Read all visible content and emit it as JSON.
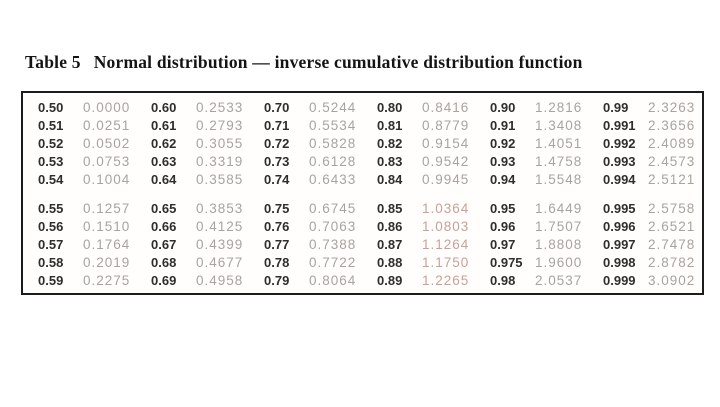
{
  "title": {
    "label": "Table 5",
    "text": "Normal distribution — inverse cumulative distribution function"
  },
  "colors": {
    "background": "#ffffff",
    "border": "#1c1c1c",
    "title": "#141414",
    "probability": "#2f2e2c",
    "value": "#a8a39e",
    "value_warm_tint": "#c7a198"
  },
  "chart_data": {
    "type": "table",
    "title": "Table 5  Normal distribution — inverse cumulative distribution function",
    "column_pattern": [
      "probability",
      "inverse_cdf_value"
    ],
    "groups": [
      {
        "rows": [
          [
            [
              "0.50",
              "0.0000"
            ],
            [
              "0.60",
              "0.2533"
            ],
            [
              "0.70",
              "0.5244"
            ],
            [
              "0.80",
              "0.8416"
            ],
            [
              "0.90",
              "1.2816"
            ],
            [
              "0.99",
              "2.3263"
            ]
          ],
          [
            [
              "0.51",
              "0.0251"
            ],
            [
              "0.61",
              "0.2793"
            ],
            [
              "0.71",
              "0.5534"
            ],
            [
              "0.81",
              "0.8779"
            ],
            [
              "0.91",
              "1.3408"
            ],
            [
              "0.991",
              "2.3656"
            ]
          ],
          [
            [
              "0.52",
              "0.0502"
            ],
            [
              "0.62",
              "0.3055"
            ],
            [
              "0.72",
              "0.5828"
            ],
            [
              "0.82",
              "0.9154"
            ],
            [
              "0.92",
              "1.4051"
            ],
            [
              "0.992",
              "2.4089"
            ]
          ],
          [
            [
              "0.53",
              "0.0753"
            ],
            [
              "0.63",
              "0.3319"
            ],
            [
              "0.73",
              "0.6128"
            ],
            [
              "0.83",
              "0.9542"
            ],
            [
              "0.93",
              "1.4758"
            ],
            [
              "0.993",
              "2.4573"
            ]
          ],
          [
            [
              "0.54",
              "0.1004"
            ],
            [
              "0.64",
              "0.3585"
            ],
            [
              "0.74",
              "0.6433"
            ],
            [
              "0.84",
              "0.9945"
            ],
            [
              "0.94",
              "1.5548"
            ],
            [
              "0.994",
              "2.5121"
            ]
          ]
        ]
      },
      {
        "rows": [
          [
            [
              "0.55",
              "0.1257"
            ],
            [
              "0.65",
              "0.3853"
            ],
            [
              "0.75",
              "0.6745"
            ],
            [
              "0.85",
              "1.0364"
            ],
            [
              "0.95",
              "1.6449"
            ],
            [
              "0.995",
              "2.5758"
            ]
          ],
          [
            [
              "0.56",
              "0.1510"
            ],
            [
              "0.66",
              "0.4125"
            ],
            [
              "0.76",
              "0.7063"
            ],
            [
              "0.86",
              "1.0803"
            ],
            [
              "0.96",
              "1.7507"
            ],
            [
              "0.996",
              "2.6521"
            ]
          ],
          [
            [
              "0.57",
              "0.1764"
            ],
            [
              "0.67",
              "0.4399"
            ],
            [
              "0.77",
              "0.7388"
            ],
            [
              "0.87",
              "1.1264"
            ],
            [
              "0.97",
              "1.8808"
            ],
            [
              "0.997",
              "2.7478"
            ]
          ],
          [
            [
              "0.58",
              "0.2019"
            ],
            [
              "0.68",
              "0.4677"
            ],
            [
              "0.78",
              "0.7722"
            ],
            [
              "0.88",
              "1.1750"
            ],
            [
              "0.975",
              "1.9600"
            ],
            [
              "0.998",
              "2.8782"
            ]
          ],
          [
            [
              "0.59",
              "0.2275"
            ],
            [
              "0.69",
              "0.4958"
            ],
            [
              "0.79",
              "0.8064"
            ],
            [
              "0.89",
              "1.2265"
            ],
            [
              "0.98",
              "2.0537"
            ],
            [
              "0.999",
              "3.0902"
            ]
          ]
        ]
      }
    ],
    "warm_tinted_block": {
      "group_index": 1,
      "pair_index": 3
    }
  }
}
